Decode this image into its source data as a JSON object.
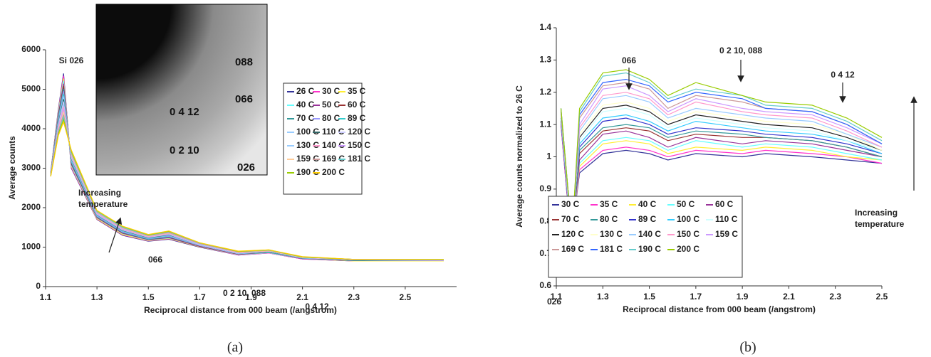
{
  "chart_data": [
    {
      "type": "line",
      "caption": "(a)",
      "x_label": "Reciprocal distance from 000 beam (/angstrom)",
      "y_label": "Average counts",
      "xlim": [
        1.1,
        2.7
      ],
      "xticks": [
        1.1,
        1.3,
        1.5,
        1.7,
        1.9,
        2.1,
        2.3,
        2.5
      ],
      "ylim": [
        0,
        6000
      ],
      "yticks": [
        0,
        1000,
        2000,
        3000,
        4000,
        5000,
        6000
      ],
      "annotations": [
        "Si 026",
        "Increasing temperature",
        "066",
        "0 2 10, 088",
        "0 4 12"
      ],
      "inset_labels": [
        "088",
        "066",
        "0 4 12",
        "0 2 10",
        "026"
      ],
      "x": [
        1.12,
        1.15,
        1.17,
        1.2,
        1.3,
        1.4,
        1.5,
        1.58,
        1.7,
        1.85,
        1.97,
        2.1,
        2.3,
        2.65
      ],
      "series": [
        {
          "name": "26 C",
          "color": "#333399",
          "values": [
            2900,
            4500,
            5400,
            3000,
            1700,
            1300,
            1150,
            1200,
            1000,
            800,
            850,
            700,
            650,
            650
          ]
        },
        {
          "name": "30 C",
          "color": "#ff33cc",
          "values": [
            2890,
            4460,
            5340,
            3020,
            1710,
            1310,
            1160,
            1210,
            1010,
            800,
            850,
            700,
            650,
            650
          ]
        },
        {
          "name": "35 C",
          "color": "#ffee33",
          "values": [
            2890,
            4430,
            5270,
            3050,
            1720,
            1320,
            1170,
            1220,
            1010,
            810,
            860,
            710,
            650,
            650
          ]
        },
        {
          "name": "40 C",
          "color": "#66ffff",
          "values": [
            2880,
            4400,
            5210,
            3070,
            1740,
            1340,
            1180,
            1230,
            1020,
            810,
            860,
            710,
            660,
            660
          ]
        },
        {
          "name": "50 C",
          "color": "#993399",
          "values": [
            2880,
            4360,
            5140,
            3100,
            1750,
            1350,
            1190,
            1240,
            1020,
            820,
            870,
            710,
            660,
            660
          ]
        },
        {
          "name": "60 C",
          "color": "#993333",
          "values": [
            2870,
            4330,
            5080,
            3120,
            1760,
            1360,
            1200,
            1250,
            1030,
            820,
            870,
            720,
            660,
            660
          ]
        },
        {
          "name": "70 C",
          "color": "#339999",
          "values": [
            2860,
            4290,
            5010,
            3140,
            1770,
            1370,
            1200,
            1260,
            1040,
            830,
            870,
            720,
            660,
            660
          ]
        },
        {
          "name": "80 C",
          "color": "#9999ff",
          "values": [
            2860,
            4250,
            4950,
            3170,
            1780,
            1380,
            1210,
            1270,
            1040,
            830,
            880,
            720,
            670,
            660
          ]
        },
        {
          "name": "89 C",
          "color": "#33cccc",
          "values": [
            2850,
            4220,
            4880,
            3190,
            1800,
            1400,
            1220,
            1290,
            1050,
            840,
            880,
            720,
            670,
            670
          ]
        },
        {
          "name": "100 C",
          "color": "#99ccff",
          "values": [
            2850,
            4180,
            4820,
            3210,
            1810,
            1410,
            1230,
            1300,
            1050,
            840,
            890,
            730,
            670,
            670
          ]
        },
        {
          "name": "110 C",
          "color": "#336666",
          "values": [
            2840,
            4150,
            4750,
            3240,
            1820,
            1420,
            1240,
            1310,
            1060,
            850,
            890,
            730,
            670,
            670
          ]
        },
        {
          "name": "120 C",
          "color": "#ccccff",
          "values": [
            2840,
            4110,
            4690,
            3260,
            1830,
            1430,
            1250,
            1320,
            1060,
            850,
            900,
            730,
            680,
            670
          ]
        },
        {
          "name": "130 C",
          "color": "#99ccff",
          "values": [
            2830,
            4080,
            4620,
            3280,
            1840,
            1440,
            1260,
            1330,
            1070,
            860,
            900,
            740,
            680,
            670
          ]
        },
        {
          "name": "140 C",
          "color": "#ff99cc",
          "values": [
            2820,
            4040,
            4560,
            3310,
            1850,
            1450,
            1260,
            1340,
            1080,
            860,
            900,
            740,
            680,
            670
          ]
        },
        {
          "name": "150 C",
          "color": "#cc99ff",
          "values": [
            2820,
            4010,
            4490,
            3330,
            1860,
            1460,
            1270,
            1350,
            1080,
            870,
            910,
            740,
            680,
            680
          ]
        },
        {
          "name": "159 C",
          "color": "#ffcc99",
          "values": [
            2810,
            3970,
            4430,
            3350,
            1880,
            1480,
            1280,
            1360,
            1090,
            870,
            910,
            740,
            690,
            680
          ]
        },
        {
          "name": "169 C",
          "color": "#cc9999",
          "values": [
            2810,
            3940,
            4360,
            3380,
            1890,
            1490,
            1290,
            1370,
            1090,
            880,
            920,
            750,
            690,
            680
          ]
        },
        {
          "name": "181 C",
          "color": "#66cccc",
          "values": [
            2800,
            3900,
            4300,
            3400,
            1900,
            1500,
            1300,
            1390,
            1100,
            890,
            920,
            750,
            690,
            680
          ]
        },
        {
          "name": "190 C",
          "color": "#99cc00",
          "values": [
            2800,
            3870,
            4230,
            3430,
            1920,
            1520,
            1310,
            1400,
            1110,
            890,
            930,
            750,
            690,
            690
          ]
        },
        {
          "name": "200 C",
          "color": "#ffcc00",
          "values": [
            2790,
            3830,
            4170,
            3460,
            1930,
            1530,
            1320,
            1410,
            1110,
            900,
            930,
            760,
            690,
            690
          ]
        }
      ]
    },
    {
      "type": "line",
      "caption": "(b)",
      "x_label": "Reciprocal distance from 000 beam (/angstrom)",
      "y_label": "Average counts normalized to 26 C",
      "xlim": [
        1.1,
        2.5
      ],
      "xticks": [
        1.1,
        1.3,
        1.5,
        1.7,
        1.9,
        2.1,
        2.3,
        2.5
      ],
      "ylim": [
        0.6,
        1.4
      ],
      "yticks": [
        0.6,
        0.7,
        0.8,
        0.9,
        1,
        1.1,
        1.2,
        1.3,
        1.4
      ],
      "annotations": [
        "066",
        "0 2 10, 088",
        "0 4 12",
        "026",
        "Increasing temperature"
      ],
      "x": [
        1.12,
        1.15,
        1.17,
        1.2,
        1.3,
        1.4,
        1.5,
        1.58,
        1.7,
        1.9,
        2.0,
        2.2,
        2.35,
        2.5
      ],
      "series": [
        {
          "name": "30 C",
          "color": "#333399",
          "values": [
            1.1,
            0.85,
            0.78,
            0.95,
            1.01,
            1.02,
            1.01,
            0.99,
            1.01,
            1.0,
            1.01,
            1.0,
            0.99,
            0.98
          ]
        },
        {
          "name": "35 C",
          "color": "#ff33cc",
          "values": [
            1.1,
            0.85,
            0.78,
            0.96,
            1.02,
            1.03,
            1.02,
            1.0,
            1.02,
            1.01,
            1.02,
            1.01,
            1.0,
            0.98
          ]
        },
        {
          "name": "40 C",
          "color": "#ffee33",
          "values": [
            1.11,
            0.86,
            0.78,
            0.97,
            1.04,
            1.05,
            1.04,
            1.01,
            1.03,
            1.02,
            1.03,
            1.02,
            1.0,
            0.99
          ]
        },
        {
          "name": "50 C",
          "color": "#66ffff",
          "values": [
            1.11,
            0.86,
            0.78,
            0.98,
            1.05,
            1.06,
            1.05,
            1.02,
            1.05,
            1.03,
            1.04,
            1.03,
            1.01,
            0.99
          ]
        },
        {
          "name": "60 C",
          "color": "#993399",
          "values": [
            1.11,
            0.86,
            0.78,
            0.99,
            1.07,
            1.08,
            1.06,
            1.03,
            1.06,
            1.04,
            1.05,
            1.04,
            1.02,
            1.0
          ]
        },
        {
          "name": "70 C",
          "color": "#993333",
          "values": [
            1.12,
            0.87,
            0.78,
            1.01,
            1.08,
            1.09,
            1.08,
            1.05,
            1.07,
            1.06,
            1.06,
            1.05,
            1.03,
            1.0
          ]
        },
        {
          "name": "80 C",
          "color": "#339999",
          "values": [
            1.12,
            0.87,
            0.78,
            1.02,
            1.09,
            1.1,
            1.09,
            1.06,
            1.08,
            1.07,
            1.06,
            1.05,
            1.03,
            1.0
          ]
        },
        {
          "name": "89 C",
          "color": "#3333cc",
          "values": [
            1.12,
            0.87,
            0.78,
            1.03,
            1.11,
            1.12,
            1.1,
            1.07,
            1.09,
            1.08,
            1.07,
            1.06,
            1.04,
            1.01
          ]
        },
        {
          "name": "100 C",
          "color": "#33ccff",
          "values": [
            1.12,
            0.87,
            0.78,
            1.04,
            1.12,
            1.13,
            1.11,
            1.08,
            1.11,
            1.09,
            1.08,
            1.07,
            1.05,
            1.01
          ]
        },
        {
          "name": "110 C",
          "color": "#ccffff",
          "values": [
            1.13,
            0.88,
            0.78,
            1.05,
            1.14,
            1.15,
            1.13,
            1.09,
            1.12,
            1.1,
            1.09,
            1.08,
            1.05,
            1.02
          ]
        },
        {
          "name": "120 C",
          "color": "#222222",
          "values": [
            1.13,
            0.88,
            0.78,
            1.06,
            1.15,
            1.16,
            1.14,
            1.1,
            1.13,
            1.11,
            1.1,
            1.09,
            1.06,
            1.02
          ]
        },
        {
          "name": "130 C",
          "color": "#ffffcc",
          "values": [
            1.13,
            0.88,
            0.78,
            1.07,
            1.16,
            1.17,
            1.15,
            1.11,
            1.14,
            1.12,
            1.11,
            1.1,
            1.07,
            1.02
          ]
        },
        {
          "name": "140 C",
          "color": "#99ccff",
          "values": [
            1.14,
            0.89,
            0.78,
            1.08,
            1.18,
            1.19,
            1.17,
            1.12,
            1.15,
            1.13,
            1.12,
            1.11,
            1.07,
            1.03
          ]
        },
        {
          "name": "150 C",
          "color": "#ff99cc",
          "values": [
            1.14,
            0.89,
            0.78,
            1.09,
            1.19,
            1.2,
            1.18,
            1.13,
            1.17,
            1.14,
            1.13,
            1.12,
            1.08,
            1.03
          ]
        },
        {
          "name": "159 C",
          "color": "#cc99ff",
          "values": [
            1.14,
            0.89,
            0.78,
            1.1,
            1.21,
            1.22,
            1.19,
            1.14,
            1.18,
            1.15,
            1.14,
            1.13,
            1.09,
            1.04
          ]
        },
        {
          "name": "169 C",
          "color": "#cc9999",
          "values": [
            1.14,
            0.9,
            0.78,
            1.12,
            1.22,
            1.23,
            1.21,
            1.15,
            1.19,
            1.17,
            1.15,
            1.14,
            1.1,
            1.04
          ]
        },
        {
          "name": "181 C",
          "color": "#3366ff",
          "values": [
            1.15,
            0.9,
            0.78,
            1.13,
            1.23,
            1.24,
            1.22,
            1.17,
            1.2,
            1.18,
            1.15,
            1.14,
            1.1,
            1.04
          ]
        },
        {
          "name": "190 C",
          "color": "#66cccc",
          "values": [
            1.15,
            0.9,
            0.78,
            1.14,
            1.25,
            1.26,
            1.23,
            1.18,
            1.21,
            1.19,
            1.16,
            1.15,
            1.11,
            1.05
          ]
        },
        {
          "name": "200 C",
          "color": "#99cc00",
          "values": [
            1.15,
            0.9,
            0.78,
            1.15,
            1.26,
            1.27,
            1.24,
            1.19,
            1.23,
            1.19,
            1.17,
            1.16,
            1.12,
            1.06
          ]
        }
      ]
    }
  ]
}
